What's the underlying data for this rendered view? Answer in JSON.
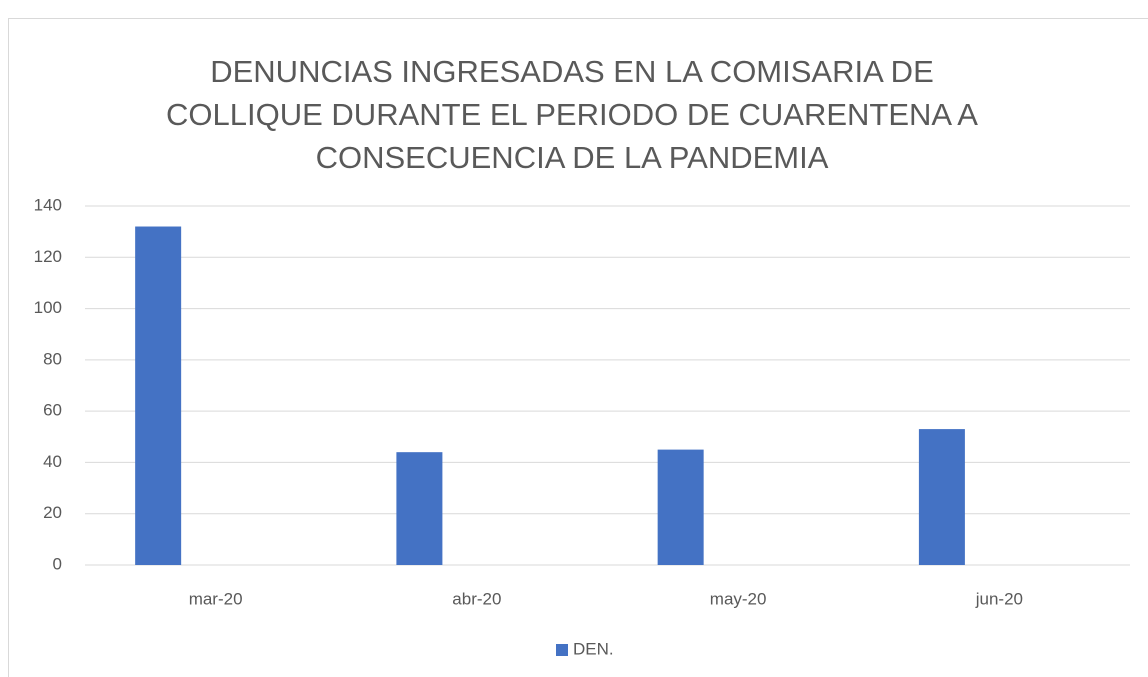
{
  "chart_data": {
    "type": "bar",
    "title": "DENUNCIAS INGRESADAS EN LA COMISARIA DE COLLIQUE DURANTE EL PERIODO DE CUARENTENA A CONSECUENCIA DE LA PANDEMIA",
    "categories": [
      "mar-20",
      "abr-20",
      "may-20",
      "jun-20"
    ],
    "series": [
      {
        "name": "DEN.",
        "color": "#4472c4",
        "values": [
          132,
          44,
          45,
          53
        ]
      }
    ],
    "ylim": [
      0,
      140
    ],
    "yticks": [
      0,
      20,
      40,
      60,
      80,
      100,
      120,
      140
    ],
    "grid": true,
    "legend": "bottom"
  }
}
